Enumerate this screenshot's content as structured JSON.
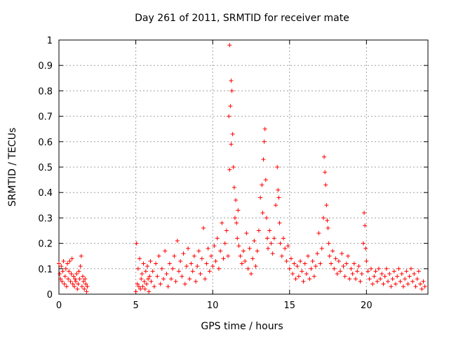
{
  "chart_data": {
    "type": "scatter",
    "title": "Day 261 of 2011, SRMTID for receiver mate",
    "xlabel": "GPS time / hours",
    "ylabel": "SRMTID / TECUs",
    "xlim": [
      0,
      24
    ],
    "ylim": [
      0,
      1
    ],
    "x_ticks": [
      "0",
      "5",
      "10",
      "15",
      "20"
    ],
    "y_ticks": [
      "0",
      "0.1",
      "0.2",
      "0.3",
      "0.4",
      "0.5",
      "0.6",
      "0.7",
      "0.8",
      "0.9",
      "1"
    ],
    "grid": true,
    "marker": "+",
    "series": [
      {
        "color": "#ff0000",
        "points": [
          [
            0.0,
            0.12
          ],
          [
            0.05,
            0.08
          ],
          [
            0.1,
            0.06
          ],
          [
            0.15,
            0.11
          ],
          [
            0.2,
            0.05
          ],
          [
            0.25,
            0.09
          ],
          [
            0.3,
            0.13
          ],
          [
            0.35,
            0.04
          ],
          [
            0.4,
            0.07
          ],
          [
            0.45,
            0.1
          ],
          [
            0.5,
            0.03
          ],
          [
            0.55,
            0.12
          ],
          [
            0.6,
            0.06
          ],
          [
            0.65,
            0.09
          ],
          [
            0.7,
            0.13
          ],
          [
            0.75,
            0.05
          ],
          [
            0.8,
            0.08
          ],
          [
            0.85,
            0.14
          ],
          [
            0.9,
            0.04
          ],
          [
            0.95,
            0.07
          ],
          [
            1.0,
            0.03
          ],
          [
            1.05,
            0.06
          ],
          [
            1.1,
            0.05
          ],
          [
            1.15,
            0.08
          ],
          [
            1.2,
            0.02
          ],
          [
            1.25,
            0.04
          ],
          [
            1.3,
            0.09
          ],
          [
            1.35,
            0.06
          ],
          [
            1.4,
            0.11
          ],
          [
            1.45,
            0.15
          ],
          [
            1.5,
            0.03
          ],
          [
            1.55,
            0.07
          ],
          [
            1.6,
            0.05
          ],
          [
            1.65,
            0.02
          ],
          [
            1.7,
            0.06
          ],
          [
            1.75,
            0.04
          ],
          [
            1.8,
            0.01
          ],
          [
            1.85,
            0.03
          ],
          [
            5.0,
            0.01
          ],
          [
            5.05,
            0.2
          ],
          [
            5.1,
            0.04
          ],
          [
            5.15,
            0.1
          ],
          [
            5.2,
            0.03
          ],
          [
            5.25,
            0.14
          ],
          [
            5.3,
            0.02
          ],
          [
            5.35,
            0.06
          ],
          [
            5.4,
            0.08
          ],
          [
            5.45,
            0.03
          ],
          [
            5.5,
            0.12
          ],
          [
            5.55,
            0.05
          ],
          [
            5.6,
            0.02
          ],
          [
            5.65,
            0.09
          ],
          [
            5.7,
            0.04
          ],
          [
            5.75,
            0.11
          ],
          [
            5.8,
            0.06
          ],
          [
            5.85,
            0.01
          ],
          [
            5.9,
            0.07
          ],
          [
            5.95,
            0.13
          ],
          [
            6.0,
            0.05
          ],
          [
            6.1,
            0.09
          ],
          [
            6.2,
            0.03
          ],
          [
            6.3,
            0.12
          ],
          [
            6.4,
            0.07
          ],
          [
            6.5,
            0.15
          ],
          [
            6.6,
            0.04
          ],
          [
            6.7,
            0.1
          ],
          [
            6.8,
            0.06
          ],
          [
            6.9,
            0.17
          ],
          [
            7.0,
            0.08
          ],
          [
            7.1,
            0.03
          ],
          [
            7.2,
            0.12
          ],
          [
            7.3,
            0.06
          ],
          [
            7.4,
            0.1
          ],
          [
            7.5,
            0.15
          ],
          [
            7.6,
            0.05
          ],
          [
            7.7,
            0.21
          ],
          [
            7.8,
            0.09
          ],
          [
            7.9,
            0.13
          ],
          [
            8.0,
            0.07
          ],
          [
            8.1,
            0.16
          ],
          [
            8.2,
            0.04
          ],
          [
            8.3,
            0.11
          ],
          [
            8.4,
            0.18
          ],
          [
            8.5,
            0.06
          ],
          [
            8.6,
            0.12
          ],
          [
            8.7,
            0.09
          ],
          [
            8.8,
            0.15
          ],
          [
            8.9,
            0.05
          ],
          [
            9.0,
            0.11
          ],
          [
            9.1,
            0.17
          ],
          [
            9.2,
            0.08
          ],
          [
            9.3,
            0.14
          ],
          [
            9.4,
            0.26
          ],
          [
            9.5,
            0.06
          ],
          [
            9.6,
            0.12
          ],
          [
            9.7,
            0.18
          ],
          [
            9.8,
            0.09
          ],
          [
            9.9,
            0.15
          ],
          [
            10.0,
            0.11
          ],
          [
            10.1,
            0.19
          ],
          [
            10.2,
            0.13
          ],
          [
            10.3,
            0.22
          ],
          [
            10.4,
            0.1
          ],
          [
            10.5,
            0.17
          ],
          [
            10.6,
            0.28
          ],
          [
            10.7,
            0.14
          ],
          [
            10.8,
            0.2
          ],
          [
            10.9,
            0.25
          ],
          [
            11.0,
            0.15
          ],
          [
            11.05,
            0.7
          ],
          [
            11.1,
            0.49
          ],
          [
            11.1,
            0.98
          ],
          [
            11.15,
            0.74
          ],
          [
            11.2,
            0.84
          ],
          [
            11.2,
            0.59
          ],
          [
            11.25,
            0.8
          ],
          [
            11.3,
            0.63
          ],
          [
            11.35,
            0.5
          ],
          [
            11.4,
            0.42
          ],
          [
            11.45,
            0.3
          ],
          [
            11.5,
            0.37
          ],
          [
            11.55,
            0.28
          ],
          [
            11.6,
            0.22
          ],
          [
            11.65,
            0.33
          ],
          [
            11.7,
            0.19
          ],
          [
            11.8,
            0.15
          ],
          [
            11.9,
            0.12
          ],
          [
            12.0,
            0.17
          ],
          [
            12.1,
            0.13
          ],
          [
            12.2,
            0.24
          ],
          [
            12.3,
            0.1
          ],
          [
            12.4,
            0.18
          ],
          [
            12.5,
            0.08
          ],
          [
            12.6,
            0.14
          ],
          [
            12.7,
            0.21
          ],
          [
            12.8,
            0.11
          ],
          [
            12.9,
            0.17
          ],
          [
            13.0,
            0.25
          ],
          [
            13.1,
            0.38
          ],
          [
            13.2,
            0.43
          ],
          [
            13.25,
            0.32
          ],
          [
            13.3,
            0.53
          ],
          [
            13.35,
            0.6
          ],
          [
            13.4,
            0.65
          ],
          [
            13.45,
            0.45
          ],
          [
            13.5,
            0.3
          ],
          [
            13.55,
            0.22
          ],
          [
            13.6,
            0.18
          ],
          [
            13.7,
            0.25
          ],
          [
            13.8,
            0.2
          ],
          [
            13.9,
            0.16
          ],
          [
            14.0,
            0.22
          ],
          [
            14.1,
            0.35
          ],
          [
            14.2,
            0.5
          ],
          [
            14.25,
            0.41
          ],
          [
            14.3,
            0.38
          ],
          [
            14.35,
            0.28
          ],
          [
            14.4,
            0.2
          ],
          [
            14.5,
            0.15
          ],
          [
            14.6,
            0.22
          ],
          [
            14.7,
            0.18
          ],
          [
            14.8,
            0.13
          ],
          [
            14.9,
            0.19
          ],
          [
            15.0,
            0.1
          ],
          [
            15.1,
            0.14
          ],
          [
            15.2,
            0.08
          ],
          [
            15.3,
            0.12
          ],
          [
            15.4,
            0.06
          ],
          [
            15.5,
            0.11
          ],
          [
            15.6,
            0.07
          ],
          [
            15.7,
            0.13
          ],
          [
            15.8,
            0.09
          ],
          [
            15.9,
            0.05
          ],
          [
            16.0,
            0.12
          ],
          [
            16.1,
            0.08
          ],
          [
            16.2,
            0.15
          ],
          [
            16.3,
            0.06
          ],
          [
            16.4,
            0.1
          ],
          [
            16.5,
            0.13
          ],
          [
            16.6,
            0.07
          ],
          [
            16.7,
            0.11
          ],
          [
            16.8,
            0.16
          ],
          [
            16.9,
            0.24
          ],
          [
            17.0,
            0.12
          ],
          [
            17.1,
            0.18
          ],
          [
            17.2,
            0.3
          ],
          [
            17.25,
            0.54
          ],
          [
            17.3,
            0.48
          ],
          [
            17.35,
            0.43
          ],
          [
            17.4,
            0.35
          ],
          [
            17.45,
            0.29
          ],
          [
            17.5,
            0.26
          ],
          [
            17.55,
            0.2
          ],
          [
            17.6,
            0.15
          ],
          [
            17.7,
            0.12
          ],
          [
            17.8,
            0.17
          ],
          [
            17.9,
            0.1
          ],
          [
            18.0,
            0.14
          ],
          [
            18.1,
            0.08
          ],
          [
            18.2,
            0.13
          ],
          [
            18.3,
            0.09
          ],
          [
            18.4,
            0.16
          ],
          [
            18.5,
            0.11
          ],
          [
            18.6,
            0.07
          ],
          [
            18.7,
            0.12
          ],
          [
            18.8,
            0.15
          ],
          [
            18.9,
            0.06
          ],
          [
            19.0,
            0.1
          ],
          [
            19.1,
            0.08
          ],
          [
            19.2,
            0.12
          ],
          [
            19.3,
            0.06
          ],
          [
            19.4,
            0.09
          ],
          [
            19.5,
            0.11
          ],
          [
            19.6,
            0.05
          ],
          [
            19.7,
            0.08
          ],
          [
            19.8,
            0.2
          ],
          [
            19.85,
            0.32
          ],
          [
            19.9,
            0.27
          ],
          [
            19.95,
            0.18
          ],
          [
            20.0,
            0.13
          ],
          [
            20.1,
            0.09
          ],
          [
            20.2,
            0.06
          ],
          [
            20.3,
            0.1
          ],
          [
            20.4,
            0.04
          ],
          [
            20.5,
            0.07
          ],
          [
            20.6,
            0.09
          ],
          [
            20.7,
            0.05
          ],
          [
            20.8,
            0.1
          ],
          [
            20.9,
            0.06
          ],
          [
            21.0,
            0.08
          ],
          [
            21.1,
            0.04
          ],
          [
            21.2,
            0.07
          ],
          [
            21.3,
            0.1
          ],
          [
            21.4,
            0.05
          ],
          [
            21.5,
            0.08
          ],
          [
            21.6,
            0.03
          ],
          [
            21.7,
            0.06
          ],
          [
            21.8,
            0.09
          ],
          [
            21.9,
            0.04
          ],
          [
            22.0,
            0.07
          ],
          [
            22.1,
            0.1
          ],
          [
            22.2,
            0.05
          ],
          [
            22.3,
            0.08
          ],
          [
            22.4,
            0.03
          ],
          [
            22.5,
            0.06
          ],
          [
            22.6,
            0.09
          ],
          [
            22.7,
            0.04
          ],
          [
            22.8,
            0.07
          ],
          [
            22.9,
            0.1
          ],
          [
            23.0,
            0.05
          ],
          [
            23.1,
            0.08
          ],
          [
            23.2,
            0.03
          ],
          [
            23.3,
            0.06
          ],
          [
            23.4,
            0.09
          ],
          [
            23.5,
            0.04
          ],
          [
            23.6,
            0.02
          ],
          [
            23.7,
            0.05
          ],
          [
            23.8,
            0.03
          ]
        ]
      }
    ]
  }
}
